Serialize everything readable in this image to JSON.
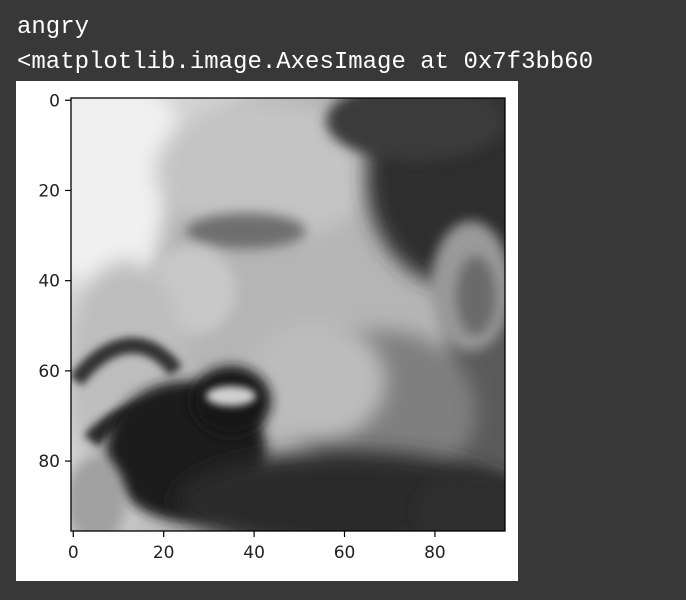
{
  "output": {
    "label_text": "angry",
    "repr_text": "<matplotlib.image.AxesImage at 0x7f3bb60"
  },
  "chart_data": {
    "type": "image",
    "title": "",
    "xlabel": "",
    "ylabel": "",
    "xlim": [
      -0.5,
      95.5
    ],
    "ylim": [
      95.5,
      -0.5
    ],
    "xticks": [
      0,
      20,
      40,
      60,
      80
    ],
    "yticks": [
      0,
      20,
      40,
      60,
      80
    ],
    "xtick_labels": [
      "0",
      "20",
      "40",
      "60",
      "80"
    ],
    "ytick_labels": [
      "0",
      "20",
      "40",
      "60",
      "80"
    ],
    "cmap": "gray",
    "image_shape": [
      96,
      96
    ],
    "grid": false
  }
}
